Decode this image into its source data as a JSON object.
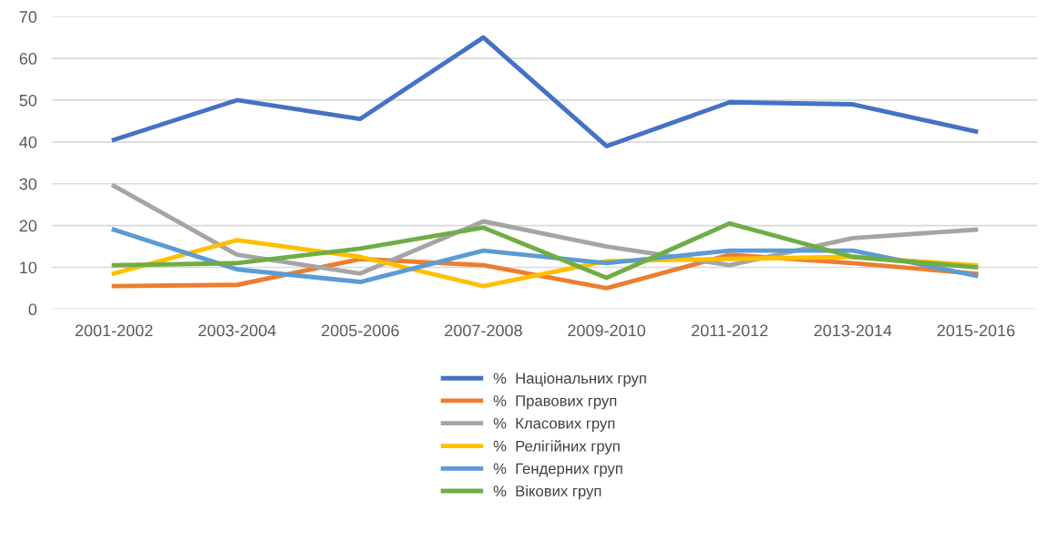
{
  "chart_data": {
    "type": "line",
    "categories": [
      "2001-2002",
      "2003-2004",
      "2005-2006",
      "2007-2008",
      "2009-2010",
      "2011-2012",
      "2013-2014",
      "2015-2016"
    ],
    "series": [
      {
        "name": "%  Національних груп",
        "color": "#4472c4",
        "values": [
          40.5,
          50,
          45.5,
          65,
          39,
          49.5,
          49,
          42.5
        ]
      },
      {
        "name": "%  Правових груп",
        "color": "#ed7d31",
        "values": [
          5.5,
          5.8,
          12,
          10.5,
          5,
          13,
          11,
          8.5
        ]
      },
      {
        "name": "%  Класових груп",
        "color": "#a5a5a5",
        "values": [
          29.5,
          13,
          8.5,
          21,
          15,
          10.5,
          17,
          19
        ]
      },
      {
        "name": "%  Релігійних груп",
        "color": "#ffc000",
        "values": [
          8.5,
          16.5,
          12.5,
          5.5,
          11.5,
          12,
          12.5,
          10.5
        ]
      },
      {
        "name": "%  Гендерних груп",
        "color": "#5b9bd5",
        "values": [
          19,
          9.5,
          6.5,
          14,
          11,
          14,
          14,
          8
        ]
      },
      {
        "name": "%  Вікових груп",
        "color": "#70ad47",
        "values": [
          10.5,
          11,
          14.5,
          19.5,
          7.5,
          20.5,
          12.5,
          10
        ]
      }
    ],
    "ylim": [
      0,
      70
    ],
    "yticks": [
      0,
      10,
      20,
      30,
      40,
      50,
      60,
      70
    ],
    "grid": "y",
    "legend": "bottom",
    "marker": "none",
    "line_style": "solid"
  }
}
